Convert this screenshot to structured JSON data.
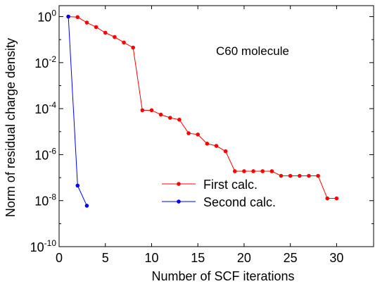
{
  "chart_data": {
    "type": "line",
    "xlabel": "Number of SCF iterations",
    "ylabel": "Norm of residual charge density",
    "annotation": "C60 molecule",
    "xlim": [
      0,
      34
    ],
    "ylim": [
      1e-10,
      3
    ],
    "yscale": "log",
    "xticks": [
      0,
      5,
      10,
      15,
      20,
      25,
      30
    ],
    "xtick_labels": [
      "0",
      "5",
      "10",
      "15",
      "20",
      "25",
      "30"
    ],
    "yticks_exp": [
      0,
      -2,
      -4,
      -6,
      -8,
      -10
    ],
    "ytick_labels": [
      {
        "base": "10",
        "exp": "0"
      },
      {
        "base": "10",
        "exp": "-2"
      },
      {
        "base": "10",
        "exp": "-4"
      },
      {
        "base": "10",
        "exp": "-6"
      },
      {
        "base": "10",
        "exp": "-8"
      },
      {
        "base": "10",
        "exp": "-10"
      }
    ],
    "grid": false,
    "legend_position": "lower-center",
    "series": [
      {
        "name": "First calc.",
        "color": "#ff0000",
        "x": [
          1,
          2,
          3,
          4,
          5,
          6,
          7,
          8,
          9,
          10,
          11,
          12,
          13,
          14,
          15,
          16,
          17,
          18,
          19,
          20,
          21,
          22,
          23,
          24,
          25,
          26,
          27,
          28,
          29,
          30
        ],
        "y": [
          1.0,
          0.95,
          0.55,
          0.35,
          0.2,
          0.13,
          0.075,
          0.045,
          8.5e-05,
          8.5e-05,
          5.5e-05,
          4e-05,
          3.3e-05,
          8.5e-06,
          7.5e-06,
          3e-06,
          2.4e-06,
          1.4e-06,
          1.9e-07,
          1.9e-07,
          1.9e-07,
          1.9e-07,
          1.9e-07,
          1.2e-07,
          1.2e-07,
          1.2e-07,
          1.2e-07,
          1.2e-07,
          1.25e-08,
          1.25e-08
        ]
      },
      {
        "name": "Second calc.",
        "color": "#0000ff",
        "x": [
          1,
          2,
          3
        ],
        "y": [
          1.0,
          4.5e-08,
          6e-09
        ]
      }
    ]
  }
}
